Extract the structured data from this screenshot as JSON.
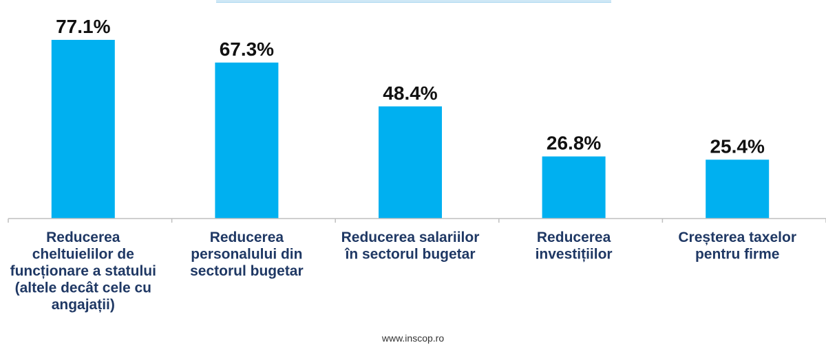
{
  "chart_data": {
    "type": "bar",
    "categories": [
      [
        "Reducerea",
        "cheltuielilor de",
        "funcționare a statului",
        "(altele decât cele cu",
        "angajații)"
      ],
      [
        "Reducerea",
        "personalului din",
        "sectorul bugetar"
      ],
      [
        "Reducerea salariilor",
        "în sectorul bugetar"
      ],
      [
        "Reducerea",
        "investițiilor"
      ],
      [
        "Creșterea taxelor",
        "pentru firme"
      ]
    ],
    "values": [
      77.1,
      67.3,
      48.4,
      26.8,
      25.4
    ],
    "value_labels": [
      "77.1%",
      "67.3%",
      "48.4%",
      "26.8%",
      "25.4%"
    ],
    "ylim": [
      0,
      100
    ],
    "grid": false,
    "bar_color": "#00b0f0",
    "axis_color": "#bfbfbf"
  },
  "footer": {
    "source": "www.inscop.ro"
  }
}
